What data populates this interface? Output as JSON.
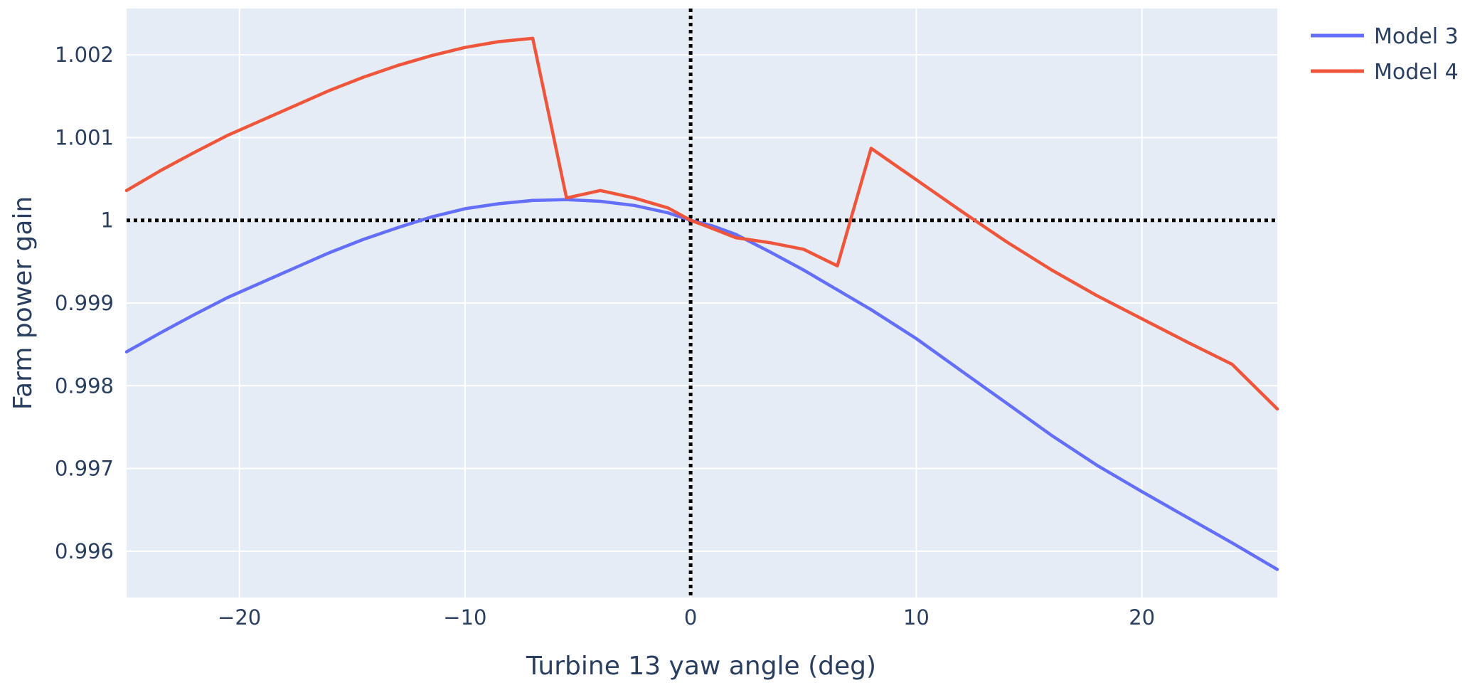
{
  "chart_data": {
    "type": "line",
    "xlabel": "Turbine 13 yaw angle (deg)",
    "ylabel": "Farm power gain",
    "xlim": [
      -25,
      26
    ],
    "ylim": [
      0.99544,
      1.00256
    ],
    "x_ticks": [
      -20,
      -10,
      0,
      10,
      20
    ],
    "x_tick_labels": [
      "−20",
      "−10",
      "0",
      "10",
      "20"
    ],
    "y_ticks": [
      0.996,
      0.997,
      0.998,
      0.999,
      1,
      1.001,
      1.002
    ],
    "y_tick_labels": [
      "0.996",
      "0.997",
      "0.998",
      "0.999",
      "1",
      "1.001",
      "1.002"
    ],
    "grid": true,
    "legend_position": "top-right",
    "reference_lines": {
      "vertical_x": 0,
      "horizontal_y": 1,
      "style": "dotted",
      "color": "#000000"
    },
    "colors": {
      "plot_background": "#e5ecf6",
      "grid": "#ffffff",
      "text": "#2a3f5f"
    },
    "series": [
      {
        "name": "Model 3",
        "color": "#636efa",
        "points": [
          [
            -25,
            0.99841
          ],
          [
            -23.5,
            0.99864
          ],
          [
            -22,
            0.99886
          ],
          [
            -20.5,
            0.99907
          ],
          [
            -19,
            0.99925
          ],
          [
            -17.5,
            0.99943
          ],
          [
            -16,
            0.99961
          ],
          [
            -14.5,
            0.99977
          ],
          [
            -13,
            0.99991
          ],
          [
            -11.5,
            1.00004
          ],
          [
            -10,
            1.00014
          ],
          [
            -8.5,
            1.0002
          ],
          [
            -7,
            1.00024
          ],
          [
            -5.5,
            1.00025
          ],
          [
            -4,
            1.00023
          ],
          [
            -2.5,
            1.00018
          ],
          [
            -1,
            1.00009
          ],
          [
            0,
            1.0
          ],
          [
            1,
            0.99993
          ],
          [
            2,
            0.99983
          ],
          [
            3.5,
            0.99962
          ],
          [
            5,
            0.9994
          ],
          [
            6.5,
            0.99916
          ],
          [
            8,
            0.99892
          ],
          [
            10,
            0.99857
          ],
          [
            12,
            0.99818
          ],
          [
            14,
            0.99779
          ],
          [
            16,
            0.9974
          ],
          [
            18,
            0.99704
          ],
          [
            20,
            0.99672
          ],
          [
            22,
            0.99641
          ],
          [
            24,
            0.9961
          ],
          [
            26,
            0.99578
          ]
        ]
      },
      {
        "name": "Model 4",
        "color": "#ef553b",
        "points": [
          [
            -25,
            1.00036
          ],
          [
            -23.5,
            1.0006
          ],
          [
            -22,
            1.00082
          ],
          [
            -20.5,
            1.00103
          ],
          [
            -19,
            1.00121
          ],
          [
            -17.5,
            1.00139
          ],
          [
            -16,
            1.00157
          ],
          [
            -14.5,
            1.00173
          ],
          [
            -13,
            1.00187
          ],
          [
            -11.5,
            1.00199
          ],
          [
            -10,
            1.00209
          ],
          [
            -8.5,
            1.00216
          ],
          [
            -7,
            1.0022
          ],
          [
            -5.5,
            1.00027
          ],
          [
            -4,
            1.00036
          ],
          [
            -2.5,
            1.00027
          ],
          [
            -1,
            1.00015
          ],
          [
            0,
            1.0
          ],
          [
            0.5,
            0.99995
          ],
          [
            2,
            0.99979
          ],
          [
            3.5,
            0.99973
          ],
          [
            5,
            0.99965
          ],
          [
            6.5,
            0.99945
          ],
          [
            8,
            1.00087
          ],
          [
            10,
            1.00049
          ],
          [
            12,
            1.00011
          ],
          [
            14,
            0.99974
          ],
          [
            16,
            0.9994
          ],
          [
            18,
            0.99909
          ],
          [
            20,
            0.99881
          ],
          [
            22,
            0.99853
          ],
          [
            24,
            0.99826
          ],
          [
            26,
            0.99772
          ]
        ]
      }
    ]
  }
}
